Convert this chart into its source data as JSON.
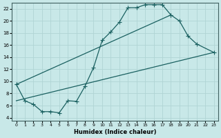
{
  "xlabel": "Humidex (Indice chaleur)",
  "ylabel": "",
  "bg_color": "#c8e8e8",
  "grid_color": "#b0d4d4",
  "line_color": "#1a6060",
  "xlim": [
    -0.5,
    23.5
  ],
  "ylim": [
    3.5,
    23
  ],
  "yticks": [
    4,
    6,
    8,
    10,
    12,
    14,
    16,
    18,
    20,
    22
  ],
  "xticks": [
    0,
    1,
    2,
    3,
    4,
    5,
    6,
    7,
    8,
    9,
    10,
    11,
    12,
    13,
    14,
    15,
    16,
    17,
    18,
    19,
    20,
    21,
    22,
    23
  ],
  "line1_x": [
    0,
    1,
    2,
    3,
    4,
    5,
    6,
    7,
    8,
    9,
    10,
    11,
    12,
    13,
    14,
    15,
    16,
    17,
    18
  ],
  "line1_y": [
    9.5,
    6.8,
    6.2,
    5.0,
    5.0,
    4.8,
    6.8,
    6.7,
    9.2,
    12.3,
    16.8,
    18.2,
    19.8,
    22.2,
    22.2,
    22.7,
    22.7,
    22.7,
    21.0
  ],
  "line2_x": [
    0,
    18,
    19,
    20,
    21,
    23
  ],
  "line2_y": [
    9.5,
    21.0,
    20.0,
    17.5,
    16.2,
    14.8
  ],
  "line3_x": [
    0,
    23
  ],
  "line3_y": [
    6.8,
    14.8
  ]
}
